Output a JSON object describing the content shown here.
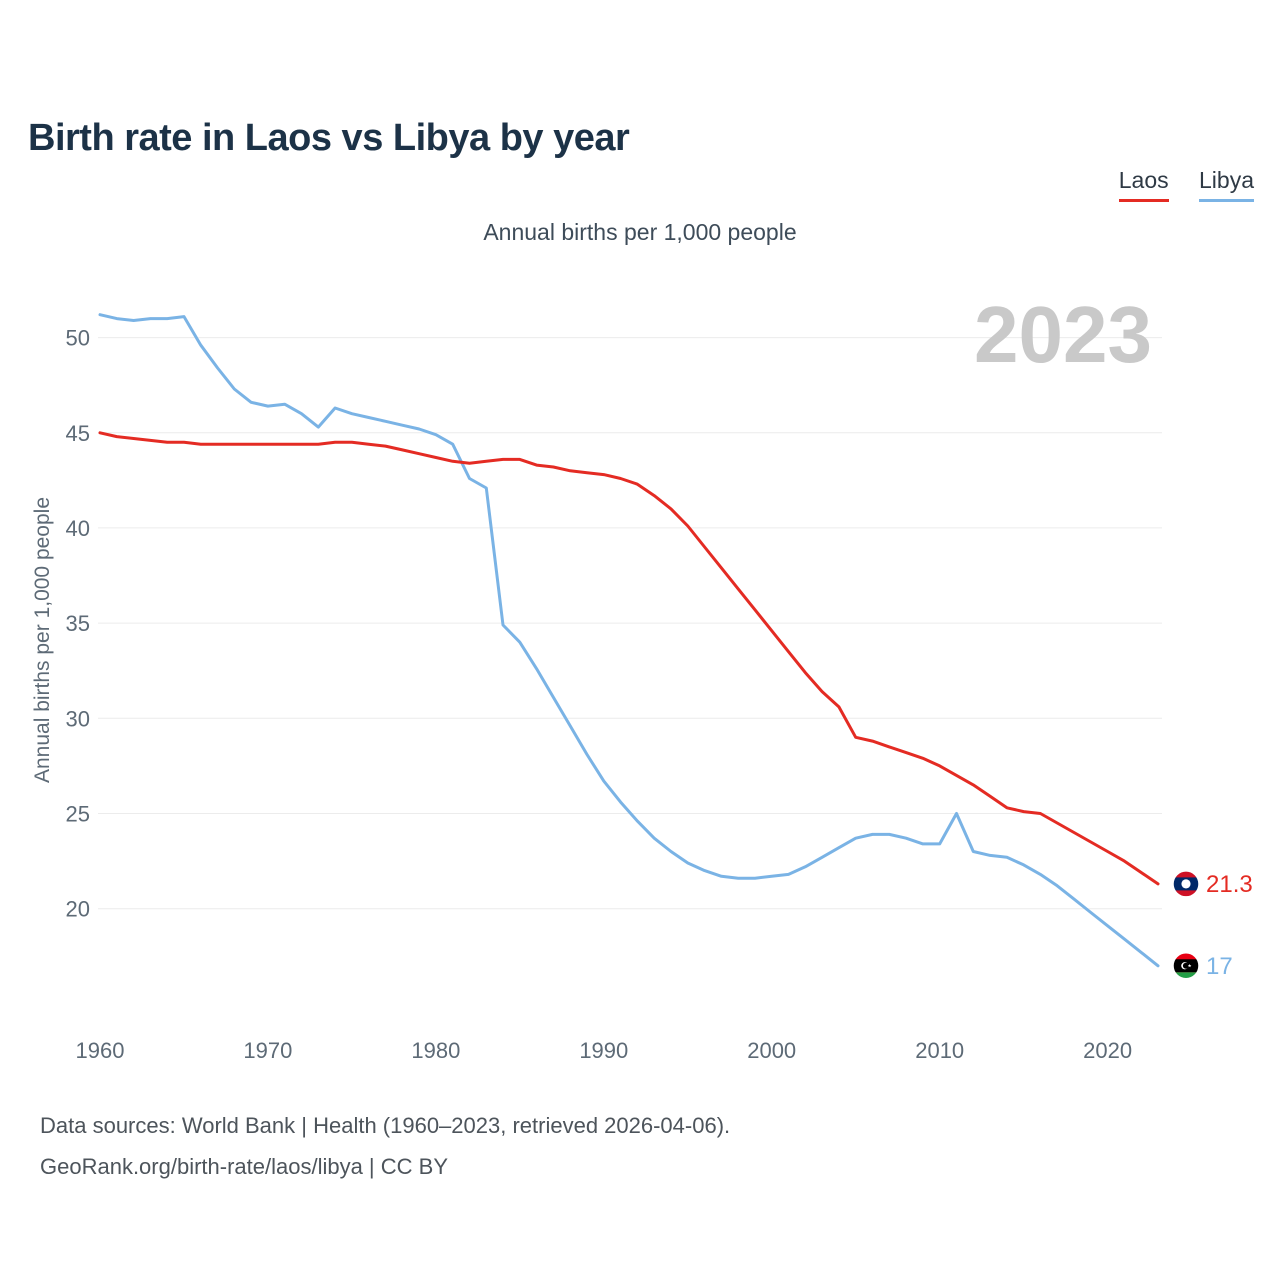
{
  "header": {
    "title": "Birth rate in Laos vs Libya by year",
    "subtitle": "Annual births per 1,000 people",
    "watermark": "2023"
  },
  "legend": {
    "laos": {
      "label": "Laos",
      "color": "#e42b23"
    },
    "libya": {
      "label": "Libya",
      "color": "#7ab3e5"
    }
  },
  "footer": {
    "line1": "Data sources: World Bank | Health (1960–2023, retrieved 2026-04-06).",
    "line2": "GeoRank.org/birth-rate/laos/libya | CC BY"
  },
  "chart_data": {
    "type": "line",
    "title": "Birth rate in Laos vs Libya by year",
    "subtitle": "Annual births per 1,000 people",
    "ylabel": "Annual births per 1,000 people",
    "xlabel": "",
    "x_ticks": [
      1960,
      1970,
      1980,
      1990,
      2000,
      2010,
      2020
    ],
    "y_ticks": [
      20,
      25,
      30,
      35,
      40,
      45,
      50
    ],
    "ylim": [
      13.1,
      52.5
    ],
    "grid": "horizontal-only",
    "legend_position": "top-right",
    "watermark": "2023",
    "x": [
      1960,
      1961,
      1962,
      1963,
      1964,
      1965,
      1966,
      1967,
      1968,
      1969,
      1970,
      1971,
      1972,
      1973,
      1974,
      1975,
      1976,
      1977,
      1978,
      1979,
      1980,
      1981,
      1982,
      1983,
      1984,
      1985,
      1986,
      1987,
      1988,
      1989,
      1990,
      1991,
      1992,
      1993,
      1994,
      1995,
      1996,
      1997,
      1998,
      1999,
      2000,
      2001,
      2002,
      2003,
      2004,
      2005,
      2006,
      2007,
      2008,
      2009,
      2010,
      2011,
      2012,
      2013,
      2014,
      2015,
      2016,
      2017,
      2018,
      2019,
      2020,
      2021,
      2022,
      2023
    ],
    "series": [
      {
        "name": "Laos",
        "color": "#e42b23",
        "end_label": "21.3",
        "values": [
          45.0,
          44.8,
          44.7,
          44.6,
          44.5,
          44.5,
          44.4,
          44.4,
          44.4,
          44.4,
          44.4,
          44.4,
          44.4,
          44.4,
          44.5,
          44.5,
          44.4,
          44.3,
          44.1,
          43.9,
          43.7,
          43.5,
          43.4,
          43.5,
          43.6,
          43.6,
          43.3,
          43.2,
          43.0,
          42.9,
          42.8,
          42.6,
          42.3,
          41.7,
          41.0,
          40.1,
          39.0,
          37.9,
          36.8,
          35.7,
          34.6,
          33.5,
          32.4,
          31.4,
          30.6,
          29.0,
          28.8,
          28.5,
          28.2,
          27.9,
          27.5,
          27.0,
          26.5,
          25.9,
          25.3,
          25.1,
          25.0,
          24.5,
          24.0,
          23.5,
          23.0,
          22.5,
          21.9,
          21.3
        ]
      },
      {
        "name": "Libya",
        "color": "#7ab3e5",
        "end_label": "17",
        "values": [
          51.2,
          51.0,
          50.9,
          51.0,
          51.0,
          51.1,
          49.6,
          48.4,
          47.3,
          46.6,
          46.4,
          46.5,
          46.0,
          45.3,
          46.3,
          46.0,
          45.8,
          45.6,
          45.4,
          45.2,
          44.9,
          44.4,
          42.6,
          42.1,
          34.9,
          34.0,
          32.6,
          31.1,
          29.6,
          28.1,
          26.7,
          25.6,
          24.6,
          23.7,
          23.0,
          22.4,
          22.0,
          21.7,
          21.6,
          21.6,
          21.7,
          21.8,
          22.2,
          22.7,
          23.2,
          23.7,
          23.9,
          23.9,
          23.7,
          23.4,
          23.4,
          25.0,
          23.0,
          22.8,
          22.7,
          22.3,
          21.8,
          21.2,
          20.5,
          19.8,
          19.1,
          18.4,
          17.7,
          17.0
        ]
      }
    ]
  }
}
